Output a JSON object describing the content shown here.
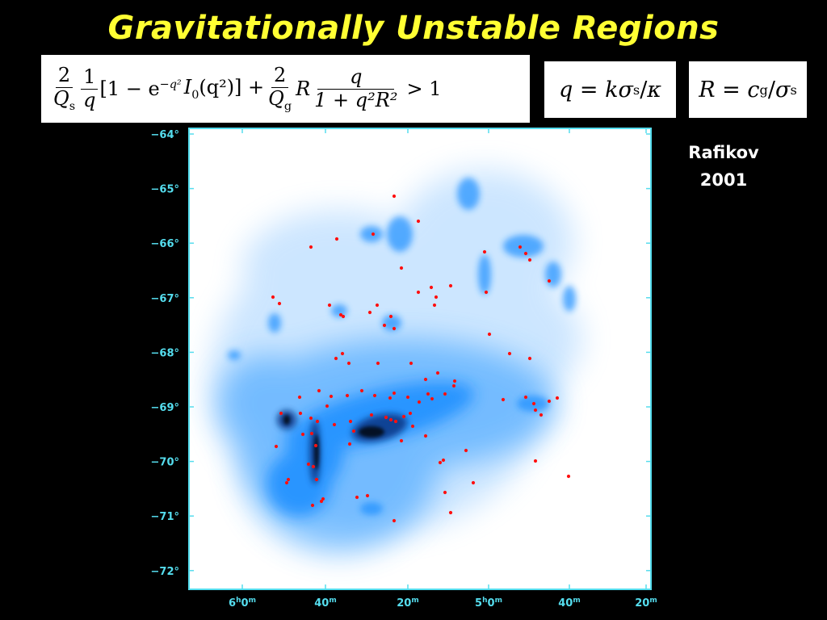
{
  "slide": {
    "title": "Gravitationally Unstable Regions",
    "credit_line1": "Rafikov",
    "credit_line2": "2001"
  },
  "equations": {
    "main": {
      "frac1_num": "2",
      "frac1_den_sym": "Q",
      "frac1_den_sub": "s",
      "frac2_num": "1",
      "frac2_den": "q",
      "bracket_open": "[1 − e",
      "exp_sup": "−q²",
      "bessel": "I",
      "bessel_sub": "0",
      "bessel_arg": "(q²)] +",
      "frac3_num": "2",
      "frac3_den_sym": "Q",
      "frac3_den_sub": "g",
      "r_sym": "R",
      "frac4_num": "q",
      "frac4_den": "1 + q²R²",
      "tail": "> 1"
    },
    "q_def": {
      "lhs": "q",
      "eq": " = ",
      "k": "k",
      "sigma": "σ",
      "sigma_sub": "s",
      "slash": "/",
      "kappa": "κ"
    },
    "r_def": {
      "lhs": "R",
      "eq": " = ",
      "c": "c",
      "c_sub": "g",
      "slash": "/",
      "sigma": "σ",
      "sigma_sub": "s"
    }
  },
  "map": {
    "frame_color": "#55ddee",
    "emission_color": "#1e8fff",
    "marker_color": "#ff1010",
    "y_axis_labels": [
      "−64°",
      "−65°",
      "−66°",
      "−67°",
      "−68°",
      "−69°",
      "−70°",
      "−71°",
      "−72°"
    ],
    "x_axis_labels": [
      {
        "main": "6",
        "sup_h": "h",
        "mid": "0",
        "sup_m": "m"
      },
      {
        "main": "40",
        "sup_h": "",
        "mid": "",
        "sup_m": "m"
      },
      {
        "main": "20",
        "sup_h": "",
        "mid": "",
        "sup_m": "m"
      },
      {
        "main": "5",
        "sup_h": "h",
        "mid": "0",
        "sup_m": "m"
      },
      {
        "main": "40",
        "sup_h": "",
        "mid": "",
        "sup_m": "m"
      },
      {
        "main": "20",
        "sup_h": "",
        "mid": "",
        "sup_m": "m"
      }
    ]
  }
}
